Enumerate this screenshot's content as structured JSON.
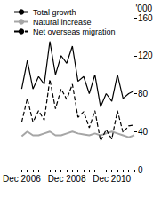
{
  "chart_data": {
    "type": "line",
    "ylabel": "'000",
    "categories": [
      "Dec 2006",
      null,
      null,
      null,
      null,
      null,
      null,
      null,
      "Dec 2008",
      null,
      null,
      null,
      null,
      null,
      null,
      null,
      "Dec 2010",
      null,
      null,
      null,
      null
    ],
    "series": [
      {
        "name": "Total growth",
        "color": "#000000",
        "line_style": "solid",
        "values": [
          85,
          115,
          85,
          98,
          90,
          135,
          100,
          120,
          112,
          130,
          93,
          98,
          80,
          100,
          66,
          80,
          72,
          100,
          75,
          80,
          83
        ]
      },
      {
        "name": "Natural increase",
        "color": "#a6a6a6",
        "line_style": "solid",
        "values": [
          35,
          40,
          36,
          36,
          38,
          40,
          36,
          36,
          38,
          40,
          38,
          37,
          36,
          38,
          36,
          38,
          40,
          38,
          36,
          34,
          36
        ]
      },
      {
        "name": "Net overseas migration",
        "color": "#000000",
        "line_style": "dashed",
        "values": [
          50,
          75,
          50,
          62,
          52,
          95,
          64,
          85,
          74,
          90,
          55,
          61,
          44,
          62,
          30,
          42,
          32,
          62,
          39,
          46,
          47
        ]
      }
    ],
    "ylim": [
      0,
      160
    ],
    "yticks": [
      0,
      40,
      80,
      120,
      160
    ],
    "grid": false,
    "legend": "top-left"
  }
}
